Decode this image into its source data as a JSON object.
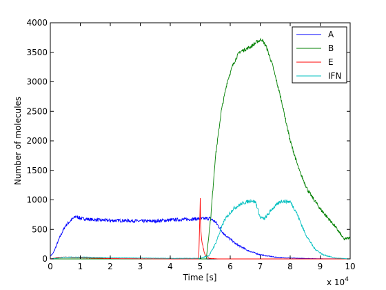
{
  "chart_data": {
    "type": "line",
    "title": "",
    "xlabel": "Time [s]",
    "ylabel": "Number of molecules",
    "x_multiplier_label": "x 10",
    "x_multiplier_exponent": "4",
    "xlim": [
      0,
      10
    ],
    "ylim": [
      0,
      4000
    ],
    "x_ticks": [
      0,
      1,
      2,
      3,
      4,
      5,
      6,
      7,
      8,
      9,
      10
    ],
    "y_ticks": [
      0,
      500,
      1000,
      1500,
      2000,
      2500,
      3000,
      3500,
      4000
    ],
    "grid": false,
    "legend_position": "top-right",
    "colors": {
      "A": "#0000ff",
      "B": "#007f00",
      "E": "#ff0000",
      "IFN": "#00bfbf"
    },
    "series": [
      {
        "name": "A",
        "x": [
          0,
          0.1,
          0.3,
          0.5,
          0.7,
          0.85,
          1.0,
          1.3,
          1.6,
          2.0,
          2.5,
          3.0,
          3.5,
          4.0,
          4.5,
          4.9,
          5.1,
          5.3,
          5.5,
          5.8,
          6.2,
          6.6,
          7.0,
          7.5,
          8.0,
          8.5,
          9.0,
          10.0
        ],
        "y": [
          50,
          100,
          350,
          560,
          660,
          720,
          690,
          670,
          660,
          650,
          650,
          640,
          640,
          660,
          670,
          680,
          680,
          690,
          630,
          420,
          250,
          140,
          70,
          30,
          15,
          8,
          3,
          0
        ]
      },
      {
        "name": "B",
        "x": [
          0,
          0.5,
          1.0,
          2.0,
          5.0,
          5.2,
          5.35,
          5.5,
          5.7,
          5.9,
          6.1,
          6.3,
          6.5,
          6.7,
          6.9,
          7.05,
          7.2,
          7.4,
          7.7,
          8.0,
          8.3,
          8.6,
          9.0,
          9.5,
          9.8,
          10.0
        ],
        "y": [
          0,
          0,
          0,
          0,
          0,
          0,
          700,
          1700,
          2500,
          3000,
          3300,
          3500,
          3550,
          3600,
          3680,
          3720,
          3600,
          3300,
          2700,
          2000,
          1500,
          1150,
          850,
          550,
          330,
          370
        ]
      },
      {
        "name": "E",
        "x": [
          0,
          0.2,
          0.5,
          1.0,
          2.0,
          4.0,
          4.95,
          5.0,
          5.01,
          5.05,
          5.15,
          5.3,
          5.6,
          6.0,
          10.0
        ],
        "y": [
          0,
          20,
          30,
          20,
          5,
          0,
          0,
          1000,
          600,
          300,
          80,
          10,
          0,
          0,
          0
        ]
      },
      {
        "name": "IFN",
        "x": [
          0,
          0.5,
          1.0,
          2.0,
          4.0,
          5.0,
          5.3,
          5.5,
          5.8,
          6.1,
          6.4,
          6.7,
          6.85,
          7.0,
          7.15,
          7.4,
          7.7,
          8.0,
          8.2,
          8.5,
          8.8,
          9.1,
          9.5,
          10.0
        ],
        "y": [
          0,
          30,
          30,
          20,
          10,
          10,
          60,
          250,
          650,
          850,
          940,
          990,
          960,
          700,
          680,
          850,
          980,
          970,
          800,
          430,
          180,
          70,
          15,
          0
        ]
      }
    ]
  }
}
